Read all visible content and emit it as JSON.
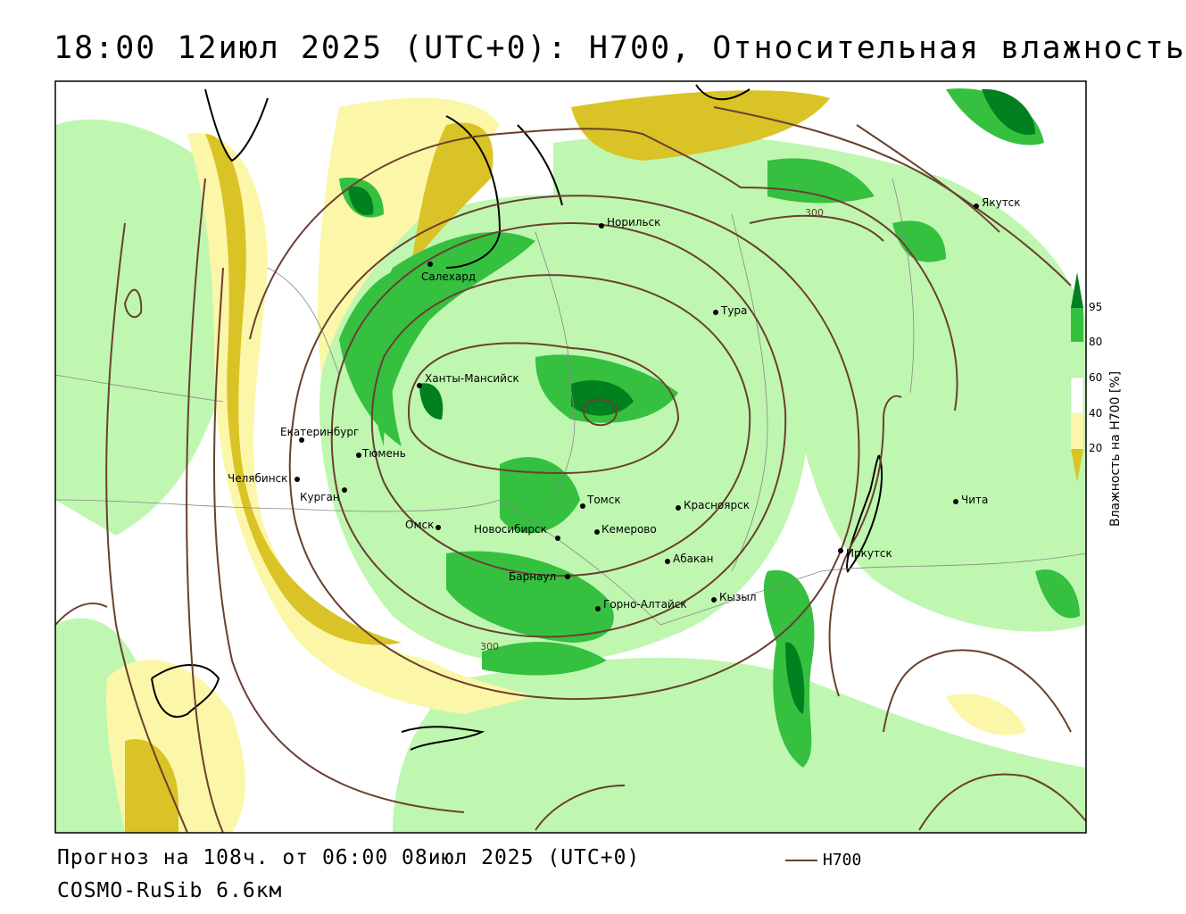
{
  "header": {
    "title": "18:00 12июл 2025 (UTC+0): H700, Относительная влажность"
  },
  "footer": {
    "forecast": "Прогноз на 108ч. от 06:00 08июл 2025 (UTC+0)",
    "model": "COSMO-RuSib 6.6км",
    "legend_line_label": "H700"
  },
  "colorbar": {
    "title": "Влажность на H700 [%]",
    "ticks": [
      "95",
      "80",
      "60",
      "40",
      "20"
    ],
    "colors": {
      "c95": "#00801e",
      "c80": "#35c040",
      "c60": "#bff7b0",
      "c40": "#ffffff",
      "c20": "#fcf6a8",
      "c0": "#d9c326"
    }
  },
  "contour_labels": [
    "300",
    "300"
  ],
  "cities": [
    {
      "name": "Норильск"
    },
    {
      "name": "Якутск"
    },
    {
      "name": "Салехард"
    },
    {
      "name": "Тура"
    },
    {
      "name": "Ханты-Мансийск"
    },
    {
      "name": "Екатеринбург"
    },
    {
      "name": "Тюмень"
    },
    {
      "name": "Челябинск"
    },
    {
      "name": "Курган"
    },
    {
      "name": "Омск"
    },
    {
      "name": "Новосибирск"
    },
    {
      "name": "Томск"
    },
    {
      "name": "Кемерово"
    },
    {
      "name": "Красноярск"
    },
    {
      "name": "Абакан"
    },
    {
      "name": "Барнаул"
    },
    {
      "name": "Горно-Алтайск"
    },
    {
      "name": "Кызыл"
    },
    {
      "name": "Иркутск"
    },
    {
      "name": "Чита"
    }
  ]
}
